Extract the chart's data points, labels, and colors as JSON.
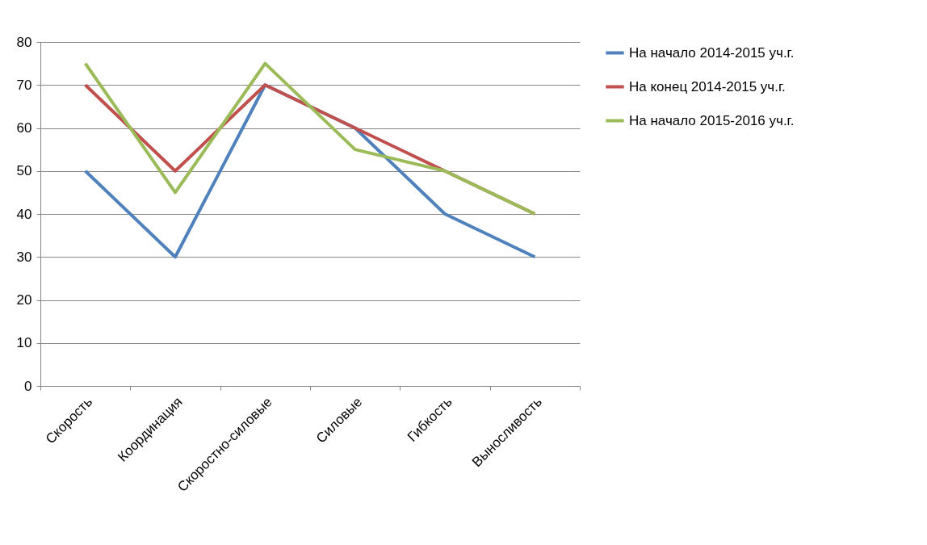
{
  "chart_data": {
    "type": "line",
    "categories": [
      "Скорость",
      "Координация",
      "Скоростно-силовые",
      "Силовые",
      "Гибкость",
      "Выносливость"
    ],
    "series": [
      {
        "name": "На начало 2014-2015 уч.г.",
        "color": "#4f81bd",
        "values": [
          50,
          30,
          70,
          60,
          40,
          30
        ]
      },
      {
        "name": "На конец 2014-2015 уч.г.",
        "color": "#c0504d",
        "values": [
          70,
          50,
          70,
          60,
          50,
          40
        ]
      },
      {
        "name": "На начало 2015-2016 уч.г.",
        "color": "#9bbb59",
        "values": [
          75,
          45,
          75,
          55,
          50,
          40
        ]
      }
    ],
    "ylim": [
      0,
      80
    ],
    "yticks": [
      0,
      10,
      20,
      30,
      40,
      50,
      60,
      70,
      80
    ],
    "grid": "y",
    "legend": "right",
    "marker": "none",
    "line_style": "solid"
  }
}
